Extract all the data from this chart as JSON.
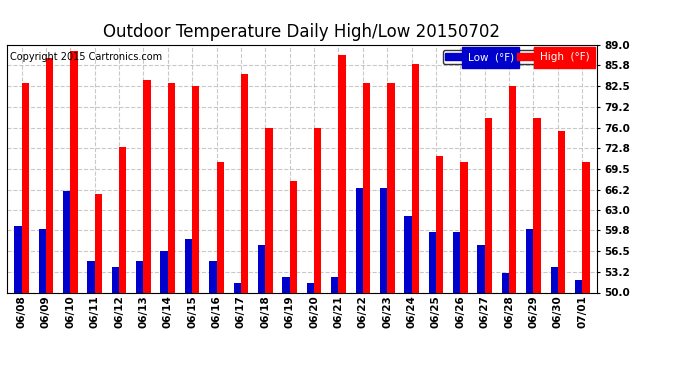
{
  "title": "Outdoor Temperature Daily High/Low 20150702",
  "copyright": "Copyright 2015 Cartronics.com",
  "dates": [
    "06/08",
    "06/09",
    "06/10",
    "06/11",
    "06/12",
    "06/13",
    "06/14",
    "06/15",
    "06/16",
    "06/17",
    "06/18",
    "06/19",
    "06/20",
    "06/21",
    "06/22",
    "06/23",
    "06/24",
    "06/25",
    "06/26",
    "06/27",
    "06/28",
    "06/29",
    "06/30",
    "07/01"
  ],
  "high": [
    83.0,
    87.0,
    88.0,
    65.5,
    73.0,
    83.5,
    83.0,
    82.5,
    70.5,
    84.5,
    76.0,
    67.5,
    76.0,
    87.5,
    83.0,
    83.0,
    86.0,
    71.5,
    70.5,
    77.5,
    82.5,
    77.5,
    75.5,
    70.5
  ],
  "low": [
    60.5,
    60.0,
    66.0,
    55.0,
    54.0,
    55.0,
    56.5,
    58.5,
    55.0,
    51.5,
    57.5,
    52.5,
    51.5,
    52.5,
    66.5,
    66.5,
    62.0,
    59.5,
    59.5,
    57.5,
    53.0,
    60.0,
    54.0,
    52.0
  ],
  "ylim": [
    50.0,
    89.0
  ],
  "yticks": [
    50.0,
    53.2,
    56.5,
    59.8,
    63.0,
    66.2,
    69.5,
    72.8,
    76.0,
    79.2,
    82.5,
    85.8,
    89.0
  ],
  "high_color": "#FF0000",
  "low_color": "#0000CC",
  "background_color": "#FFFFFF",
  "grid_color": "#BBBBBB",
  "title_fontsize": 12,
  "tick_fontsize": 7.5,
  "copyright_fontsize": 7
}
